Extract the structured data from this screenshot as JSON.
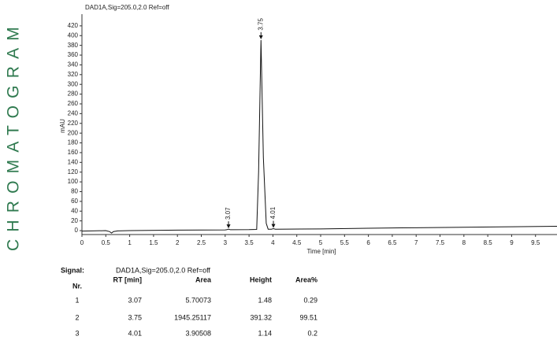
{
  "side_title": "CHROMATOGRAM",
  "chart_data": {
    "type": "line",
    "title": "DAD1A,Sig=205.0,2.0  Ref=off",
    "y_label": "mAU",
    "x_label": "Time [min]",
    "x": [
      0,
      0.5,
      0.58,
      0.62,
      0.66,
      0.75,
      1,
      2,
      3,
      3.03,
      3.07,
      3.11,
      3.5,
      3.66,
      3.7,
      3.75,
      3.8,
      3.86,
      3.9,
      3.97,
      4.01,
      4.05,
      5,
      6,
      7,
      8,
      9,
      9.95
    ],
    "series": [
      {
        "color": "#111111",
        "values": [
          -1,
          0,
          -2,
          -5,
          -2,
          -0.5,
          0,
          1,
          1.5,
          1.8,
          3,
          1.8,
          2,
          2.5,
          120,
          391,
          150,
          15,
          3,
          3,
          4,
          3,
          3.5,
          5,
          6,
          7,
          8,
          9
        ]
      }
    ],
    "peak_labels": [
      3.07,
      3.75,
      4.01
    ],
    "xlim": [
      0,
      9.95
    ],
    "ylim": [
      -8,
      444
    ],
    "xticks": [
      0,
      0.5,
      1,
      1.5,
      2,
      2.5,
      3,
      3.5,
      4,
      4.5,
      5,
      5.5,
      6,
      6.5,
      7,
      7.5,
      8,
      8.5,
      9,
      9.5
    ],
    "yticks": [
      0,
      20,
      40,
      60,
      80,
      100,
      120,
      140,
      160,
      180,
      200,
      220,
      240,
      260,
      280,
      300,
      320,
      340,
      360,
      380,
      400,
      420
    ],
    "grid": false
  },
  "table": {
    "signal_label": "Signal:",
    "signal": "DAD1A,Sig=205.0,2.0  Ref=off",
    "columns": [
      "Nr.",
      "RT [min]",
      "Area",
      "Height",
      "Area%"
    ],
    "rows": [
      [
        1,
        3.07,
        5.70073,
        1.48,
        0.29
      ],
      [
        2,
        3.75,
        1945.25117,
        391.32,
        99.51
      ],
      [
        3,
        4.01,
        3.90508,
        1.14,
        0.2
      ]
    ]
  }
}
